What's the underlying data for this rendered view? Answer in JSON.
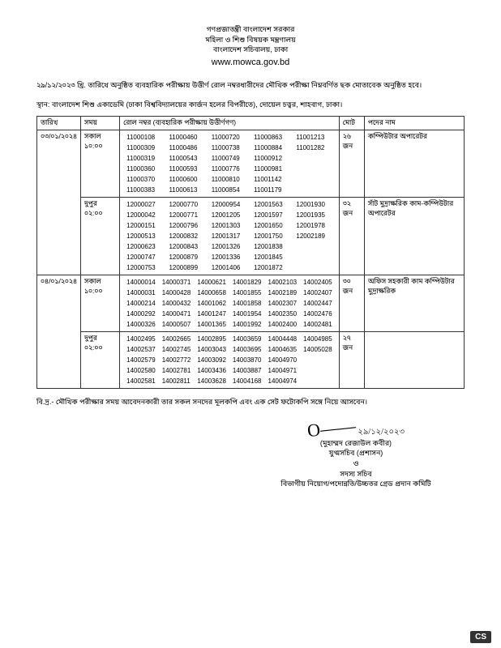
{
  "header": {
    "line1": "গণপ্রজাতন্ত্রী বাংলাদেশ সরকার",
    "line2": "মহিলা ও শিশু বিষয়ক মন্ত্রণালয়",
    "line3": "বাংলাদেশ সচিবালয়, ঢাকা",
    "url": "www.mowca.gov.bd"
  },
  "intro": "২৯/১২/২০২৩ খ্রি. তারিখে অনুষ্ঠিত ব্যবহারিক পরীক্ষায় উত্তীর্ণ রোল নম্বরধারীদের মৌখিক পরীক্ষা নিম্নবর্ণিত ছক মোতাবেক অনুষ্ঠিত হবে।",
  "venue": "স্থান: বাংলাদেশ শিশু একাডেমি (ঢাকা বিশ্ববিদ্যালয়ের কার্জন হলের বিপরীতে), দোয়েল চত্বর, শাহবাগ, ঢাকা।",
  "table": {
    "cols": {
      "date": "তারিখ",
      "time": "সময়",
      "rolls": "রোল নম্বর (ব্যবহারিক পরীক্ষায় উত্তীর্ণগণ)",
      "total": "মোট",
      "post": "পদের নাম"
    },
    "rows": [
      {
        "date": "০৩/০১/২০২৪",
        "sessions": [
          {
            "time": "সকাল ১০:০০",
            "total": "২৬ জন",
            "post": "কম্পিউটার অপারেটর",
            "rolls": [
              [
                "11000108",
                "11000460",
                "11000720",
                "11000863",
                "11001213"
              ],
              [
                "11000309",
                "11000486",
                "11000738",
                "11000884",
                "11001282"
              ],
              [
                "11000319",
                "11000543",
                "11000749",
                "11000912",
                ""
              ],
              [
                "11000360",
                "11000593",
                "11000776",
                "11000981",
                ""
              ],
              [
                "11000370",
                "11000600",
                "11000810",
                "11001142",
                ""
              ],
              [
                "11000383",
                "11000613",
                "11000854",
                "11001179",
                ""
              ]
            ]
          },
          {
            "time": "দুপুর ০২:০০",
            "total": "৩২ জন",
            "post": "সাঁট মুদ্রাক্ষরিক কাম-কম্পিউটার অপারেটর",
            "rolls": [
              [
                "12000027",
                "12000770",
                "12000954",
                "12001563",
                "12001930"
              ],
              [
                "12000042",
                "12000771",
                "12001205",
                "12001597",
                "12001935"
              ],
              [
                "12000151",
                "12000796",
                "12001303",
                "12001650",
                "12001978"
              ],
              [
                "12000513",
                "12000832",
                "12001317",
                "12001750",
                "12002189"
              ],
              [
                "12000623",
                "12000843",
                "12001326",
                "12001838",
                ""
              ],
              [
                "12000747",
                "12000879",
                "12001336",
                "12001845",
                ""
              ],
              [
                "12000753",
                "12000899",
                "12001406",
                "12001872",
                ""
              ]
            ]
          }
        ]
      },
      {
        "date": "০৪/০১/২০২৪",
        "sessions": [
          {
            "time": "সকাল ১০:০০",
            "total": "৩০ জন",
            "post": "অফিস সহকারী কাম কম্পিউটার মুদ্রাক্ষরিক",
            "rolls": [
              [
                "14000014",
                "14000371",
                "14000621",
                "14001829",
                "14002103",
                "14002405"
              ],
              [
                "14000031",
                "14000428",
                "14000658",
                "14001855",
                "14002189",
                "14002407"
              ],
              [
                "14000214",
                "14000432",
                "14001062",
                "14001858",
                "14002307",
                "14002447"
              ],
              [
                "14000292",
                "14000471",
                "14001247",
                "14001954",
                "14002350",
                "14002476"
              ],
              [
                "14000326",
                "14000507",
                "14001365",
                "14001992",
                "14002400",
                "14002481"
              ]
            ]
          },
          {
            "time": "দুপুর ০২:০০",
            "total": "২৭ জন",
            "post": "",
            "rolls": [
              [
                "14002495",
                "14002665",
                "14002895",
                "14003659",
                "14004448",
                "14004985"
              ],
              [
                "14002537",
                "14002745",
                "14003043",
                "14003695",
                "14004635",
                "14005028"
              ],
              [
                "14002579",
                "14002772",
                "14003092",
                "14003870",
                "14004970",
                ""
              ],
              [
                "14002580",
                "14002781",
                "14003436",
                "14003887",
                "14004971",
                ""
              ],
              [
                "14002581",
                "14002811",
                "14003628",
                "14004168",
                "14004974",
                ""
              ]
            ]
          }
        ]
      }
    ]
  },
  "note": "বি.দ্র.- মৌখিক পরীক্ষার সময় আবেদনকারী তার সকল সনদের মূলকপি এবং এক সেট ফটোকপি সঙ্গে নিয়ে আসবেন।",
  "sign": {
    "scribble": "~~~",
    "date": "২৯/১২/২০২৩",
    "name": "(মুহাম্মদ রেজাউল কবীর)",
    "title1": "যুগ্মসচিব (প্রশাসন)",
    "amp": "ও",
    "title2": "সদস্য সচিব",
    "title3": "বিভাগীয় নিয়োগ/পদোন্নতি/উচ্চতর গ্রেড প্রদান কমিটি"
  },
  "badge": "CS"
}
